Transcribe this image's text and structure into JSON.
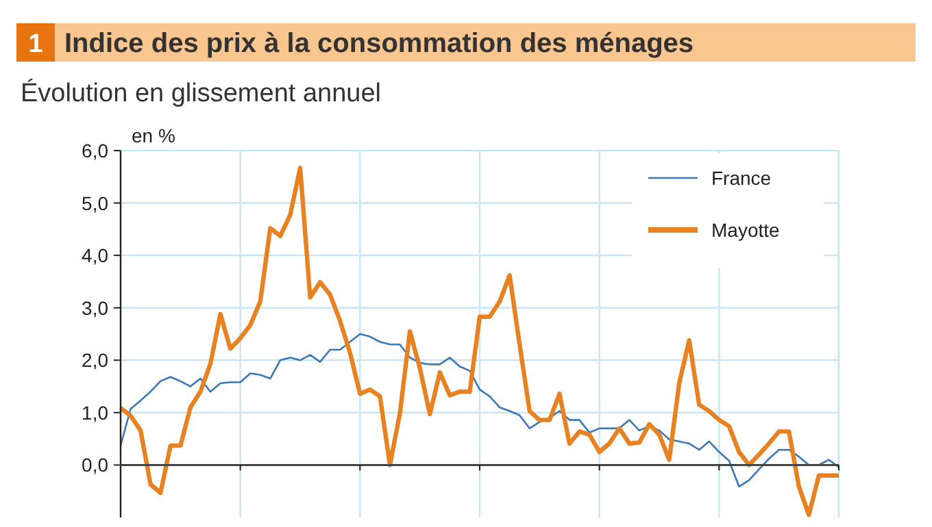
{
  "chart_data": {
    "type": "line",
    "title": "Indice des prix à la consommation des ménages",
    "subtitle": "Évolution en glissement annuel",
    "ylabel": "en %",
    "annotations": [
      "1"
    ],
    "categories": [
      null,
      null,
      null,
      null,
      null,
      null,
      null,
      null,
      null,
      null,
      null,
      null,
      null,
      null,
      null,
      null,
      null,
      null,
      null,
      null,
      null,
      null,
      null,
      null,
      null,
      null,
      null,
      null,
      null,
      null,
      null,
      null,
      null,
      null,
      null,
      null,
      null,
      null,
      null,
      null,
      null,
      null,
      null,
      null,
      null,
      null,
      null,
      null,
      null,
      null,
      null,
      null,
      null,
      null,
      null,
      null,
      null,
      null,
      null,
      null,
      null,
      null,
      null,
      null,
      null,
      null,
      null,
      null,
      null,
      null,
      null,
      null,
      null
    ],
    "series": [
      {
        "name": "France",
        "color": "#3a78b8",
        "values": [
          0.37,
          1.07,
          1.23,
          1.4,
          1.6,
          1.68,
          1.6,
          1.5,
          1.65,
          1.4,
          1.56,
          1.58,
          1.58,
          1.75,
          1.72,
          1.65,
          2.0,
          2.05,
          2.0,
          2.1,
          1.97,
          2.2,
          2.2,
          2.35,
          2.5,
          2.45,
          2.35,
          2.3,
          2.3,
          2.05,
          1.95,
          1.92,
          1.92,
          2.05,
          1.88,
          1.8,
          1.44,
          1.31,
          1.1,
          1.03,
          0.95,
          0.7,
          0.82,
          0.9,
          1.03,
          0.86,
          0.86,
          0.62,
          0.7,
          0.7,
          0.7,
          0.86,
          0.66,
          0.74,
          0.66,
          0.49,
          0.45,
          0.41,
          0.29,
          0.45,
          0.25,
          0.08,
          -0.41,
          -0.29,
          -0.08,
          0.12,
          0.29,
          0.29,
          0.16,
          0.0,
          0.0,
          0.1,
          -0.04
        ]
      },
      {
        "name": "Mayotte",
        "color": "#e8811f",
        "values": [
          1.09,
          0.94,
          0.66,
          -0.37,
          -0.53,
          0.37,
          0.37,
          1.1,
          1.4,
          1.93,
          2.88,
          2.22,
          2.42,
          2.67,
          3.12,
          4.52,
          4.37,
          4.77,
          5.67,
          3.2,
          3.49,
          3.25,
          2.75,
          2.14,
          1.36,
          1.44,
          1.31,
          0.0,
          0.99,
          2.55,
          1.85,
          0.97,
          1.77,
          1.33,
          1.4,
          1.4,
          2.83,
          2.83,
          3.12,
          3.62,
          2.3,
          1.03,
          0.86,
          0.86,
          1.36,
          0.41,
          0.64,
          0.58,
          0.25,
          0.41,
          0.7,
          0.41,
          0.43,
          0.78,
          0.58,
          0.1,
          1.56,
          2.38,
          1.15,
          1.03,
          0.86,
          0.74,
          0.25,
          0.0,
          0.2,
          0.41,
          0.64,
          0.64,
          -0.41,
          -0.95,
          -0.2,
          -0.2,
          -0.2
        ]
      }
    ],
    "ylim": [
      -1,
      6
    ],
    "yticks": [
      {
        "value": 0,
        "label": "0,0"
      },
      {
        "value": 1,
        "label": "1,0"
      },
      {
        "value": 2,
        "label": "2,0"
      },
      {
        "value": 3,
        "label": "3,0"
      },
      {
        "value": 4,
        "label": "4,0"
      },
      {
        "value": 5,
        "label": "5,0"
      },
      {
        "value": 6,
        "label": "6,0"
      }
    ],
    "grid": true,
    "legend": "top right"
  }
}
